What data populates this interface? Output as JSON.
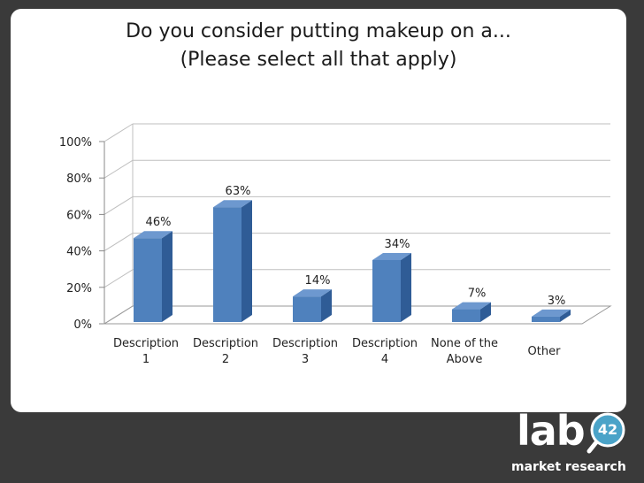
{
  "logo": {
    "text": "lab",
    "number": "42",
    "subtitle": "market research"
  },
  "colors": {
    "bar_front": "#4f81bd",
    "bar_side": "#2f5c96",
    "bar_top": "#6d98cf",
    "grid": "#bfbfbf",
    "badge": "#4aa3c8"
  },
  "chart_data": {
    "type": "bar",
    "title": "Do you consider putting makeup on a...",
    "subtitle": "(Please select all that apply)",
    "categories": [
      [
        "Description",
        "1"
      ],
      [
        "Description",
        "2"
      ],
      [
        "Description",
        "3"
      ],
      [
        "Description",
        "4"
      ],
      [
        "None of the",
        "Above"
      ],
      [
        "Other"
      ]
    ],
    "values": [
      46,
      63,
      14,
      34,
      7,
      3
    ],
    "data_labels": [
      "46%",
      "63%",
      "14%",
      "34%",
      "7%",
      "3%"
    ],
    "y_ticks": [
      "0%",
      "20%",
      "40%",
      "60%",
      "80%",
      "100%"
    ],
    "ylim": [
      0,
      100
    ],
    "grid": true,
    "legend": "none"
  }
}
